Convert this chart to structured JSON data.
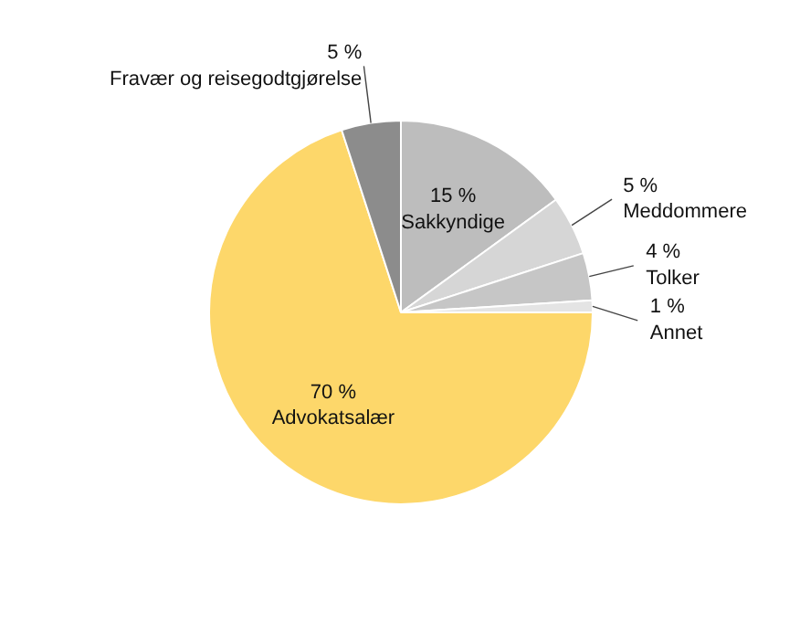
{
  "chart_data": {
    "type": "pie",
    "categories": [
      "Advokatsalær",
      "Fravær og reisegodtgjørelse",
      "Sakkyndige",
      "Meddommere",
      "Tolker",
      "Annet"
    ],
    "values": [
      70,
      5,
      15,
      5,
      4,
      1
    ],
    "colors": [
      "#fdd76a",
      "#8c8c8c",
      "#bdbdbd",
      "#d6d6d6",
      "#c6c6c6",
      "#e4e4e4"
    ],
    "value_labels": [
      "70 %",
      "5 %",
      "15 %",
      "5 %",
      "4 %",
      "1 %"
    ]
  }
}
